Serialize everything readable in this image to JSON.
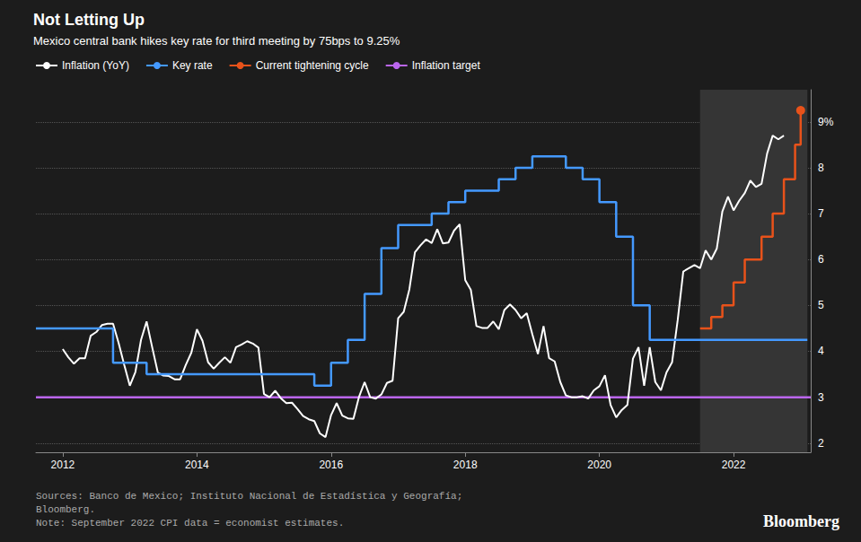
{
  "chart_data": {
    "type": "line",
    "title": "Not Letting Up",
    "subtitle": "Mexico central bank hikes key rate for third meeting by 75bps to 9.25%",
    "annotations": [
      "Sources: Banco de Mexico; Instituto Nacional de Estadística y Geografía;\nBloomberg.\nNote: September 2022 CPI data = economist estimates.",
      "Bloomberg"
    ],
    "legend": "top",
    "grid": true,
    "xlim": [
      2011.6,
      2023.15
    ],
    "xticks": [
      2012,
      2014,
      2016,
      2018,
      2020,
      2022
    ],
    "ylim": [
      1.8,
      9.7
    ],
    "yticks": [
      2,
      3,
      4,
      5,
      6,
      7,
      8,
      {
        "value": 9,
        "label": "9%"
      }
    ],
    "highlight": {
      "start": 2021.5,
      "end": 2023.1,
      "color": "#353535"
    },
    "series": [
      {
        "name": "Inflation (YoY)",
        "type": "line",
        "color": "#ffffff",
        "x": [
          2012.0,
          2012.083,
          2012.167,
          2012.25,
          2012.333,
          2012.417,
          2012.5,
          2012.583,
          2012.667,
          2012.75,
          2012.833,
          2012.917,
          2013.0,
          2013.083,
          2013.167,
          2013.25,
          2013.333,
          2013.417,
          2013.5,
          2013.583,
          2013.667,
          2013.75,
          2013.833,
          2013.917,
          2014.0,
          2014.083,
          2014.167,
          2014.25,
          2014.333,
          2014.417,
          2014.5,
          2014.583,
          2014.667,
          2014.75,
          2014.833,
          2014.917,
          2015.0,
          2015.083,
          2015.167,
          2015.25,
          2015.333,
          2015.417,
          2015.5,
          2015.583,
          2015.667,
          2015.75,
          2015.833,
          2015.917,
          2016.0,
          2016.083,
          2016.167,
          2016.25,
          2016.333,
          2016.417,
          2016.5,
          2016.583,
          2016.667,
          2016.75,
          2016.833,
          2016.917,
          2017.0,
          2017.083,
          2017.167,
          2017.25,
          2017.333,
          2017.417,
          2017.5,
          2017.583,
          2017.667,
          2017.75,
          2017.833,
          2017.917,
          2018.0,
          2018.083,
          2018.167,
          2018.25,
          2018.333,
          2018.417,
          2018.5,
          2018.583,
          2018.667,
          2018.75,
          2018.833,
          2018.917,
          2019.0,
          2019.083,
          2019.167,
          2019.25,
          2019.333,
          2019.417,
          2019.5,
          2019.583,
          2019.667,
          2019.75,
          2019.833,
          2019.917,
          2020.0,
          2020.083,
          2020.167,
          2020.25,
          2020.333,
          2020.417,
          2020.5,
          2020.583,
          2020.667,
          2020.75,
          2020.833,
          2020.917,
          2021.0,
          2021.083,
          2021.167,
          2021.25,
          2021.333,
          2021.417,
          2021.5,
          2021.583,
          2021.667,
          2021.75,
          2021.833,
          2021.917,
          2022.0,
          2022.083,
          2022.167,
          2022.25,
          2022.333,
          2022.417,
          2022.5,
          2022.583,
          2022.667,
          2022.75
        ],
        "values": [
          4.05,
          3.87,
          3.73,
          3.85,
          3.85,
          4.34,
          4.42,
          4.57,
          4.6,
          4.6,
          4.18,
          3.7,
          3.25,
          3.55,
          4.25,
          4.65,
          4.09,
          3.54,
          3.47,
          3.46,
          3.39,
          3.39,
          3.7,
          3.97,
          4.48,
          4.23,
          3.76,
          3.62,
          3.75,
          3.87,
          3.75,
          4.09,
          4.15,
          4.22,
          4.17,
          4.08,
          3.07,
          3.0,
          3.14,
          2.98,
          2.87,
          2.88,
          2.74,
          2.59,
          2.52,
          2.48,
          2.21,
          2.13,
          2.61,
          2.87,
          2.6,
          2.54,
          2.53,
          3.01,
          3.33,
          3.0,
          2.97,
          3.06,
          3.31,
          3.36,
          4.72,
          4.86,
          5.35,
          6.16,
          6.31,
          6.44,
          6.36,
          6.66,
          6.35,
          6.37,
          6.63,
          6.77,
          5.55,
          5.34,
          4.55,
          4.51,
          4.51,
          4.65,
          4.48,
          4.9,
          5.02,
          4.9,
          4.72,
          4.83,
          4.37,
          3.94,
          4.55,
          3.85,
          3.78,
          3.33,
          3.04,
          3.0,
          3.0,
          3.02,
          2.97,
          3.15,
          3.24,
          3.48,
          2.83,
          2.56,
          2.72,
          2.83,
          3.84,
          4.09,
          3.25,
          4.09,
          3.33,
          3.15,
          3.54,
          3.76,
          4.68,
          5.74,
          5.81,
          5.88,
          5.81,
          6.2,
          6.0,
          6.24,
          7.05,
          7.37,
          7.07,
          7.28,
          7.45,
          7.72,
          7.58,
          7.65,
          8.31,
          8.7,
          8.62,
          8.7
        ]
      },
      {
        "name": "Key rate",
        "type": "step",
        "color": "#4499ff",
        "x": [
          2011.6,
          2012.5,
          2012.75,
          2013.25,
          2015.75,
          2016.0,
          2016.25,
          2016.5,
          2016.75,
          2017.0,
          2017.5,
          2017.75,
          2018.0,
          2018.5,
          2018.75,
          2019.0,
          2019.5,
          2019.75,
          2020.0,
          2020.25,
          2020.5,
          2020.75,
          2021.0,
          2021.75,
          2023.1
        ],
        "values": [
          4.5,
          4.5,
          3.75,
          3.5,
          3.25,
          3.75,
          4.25,
          5.25,
          6.25,
          6.75,
          7.0,
          7.25,
          7.5,
          7.75,
          8.0,
          8.25,
          8.0,
          7.75,
          7.25,
          6.5,
          5.0,
          4.25,
          4.25,
          4.25,
          4.25
        ]
      },
      {
        "name": "Current tightening cycle",
        "type": "step",
        "color": "#e8521a",
        "marker": "circle",
        "x": [
          2021.5,
          2021.667,
          2021.833,
          2022.0,
          2022.167,
          2022.417,
          2022.583,
          2022.75,
          2022.917,
          2023.0
        ],
        "values": [
          4.5,
          4.75,
          5.0,
          5.5,
          6.0,
          6.5,
          7.0,
          7.75,
          8.5,
          9.25
        ]
      },
      {
        "name": "Inflation target",
        "type": "hline",
        "color": "#bb66ee",
        "values": [
          3.0
        ]
      }
    ]
  }
}
